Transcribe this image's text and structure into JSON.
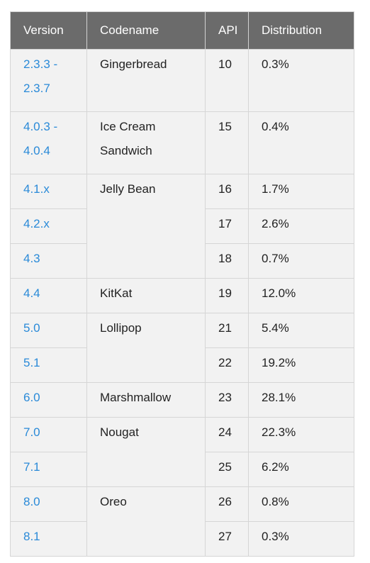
{
  "headers": [
    "Version",
    "Codename",
    "API",
    "Distribution"
  ],
  "rows": [
    {
      "version": [
        "2.3.3 -",
        "2.3.7"
      ],
      "codename": [
        "Gingerbread"
      ],
      "api": "10",
      "dist": "0.3%"
    },
    {
      "version": [
        "4.0.3 -",
        "4.0.4"
      ],
      "codename": [
        "Ice Cream",
        "Sandwich"
      ],
      "api": "15",
      "dist": "0.4%"
    },
    {
      "version": [
        "4.1.x"
      ],
      "codename": [
        "Jelly Bean"
      ],
      "api": "16",
      "dist": "1.7%"
    },
    {
      "version": [
        "4.2.x"
      ],
      "api": "17",
      "dist": "2.6%"
    },
    {
      "version": [
        "4.3"
      ],
      "api": "18",
      "dist": "0.7%"
    },
    {
      "version": [
        "4.4"
      ],
      "codename": [
        "KitKat"
      ],
      "api": "19",
      "dist": "12.0%"
    },
    {
      "version": [
        "5.0"
      ],
      "codename": [
        "Lollipop"
      ],
      "api": "21",
      "dist": "5.4%"
    },
    {
      "version": [
        "5.1"
      ],
      "api": "22",
      "dist": "19.2%"
    },
    {
      "version": [
        "6.0"
      ],
      "codename": [
        "Marshmallow"
      ],
      "api": "23",
      "dist": "28.1%"
    },
    {
      "version": [
        "7.0"
      ],
      "codename": [
        "Nougat"
      ],
      "api": "24",
      "dist": "22.3%"
    },
    {
      "version": [
        "7.1"
      ],
      "api": "25",
      "dist": "6.2%"
    },
    {
      "version": [
        "8.0"
      ],
      "codename": [
        "Oreo"
      ],
      "api": "26",
      "dist": "0.8%"
    },
    {
      "version": [
        "8.1"
      ],
      "api": "27",
      "dist": "0.3%"
    }
  ],
  "colors": {
    "header_bg": "#6b6b6b",
    "header_text": "#ffffff",
    "cell_bg": "#f2f2f2",
    "link": "#2a8ad8",
    "border": "#d6d6d6"
  }
}
